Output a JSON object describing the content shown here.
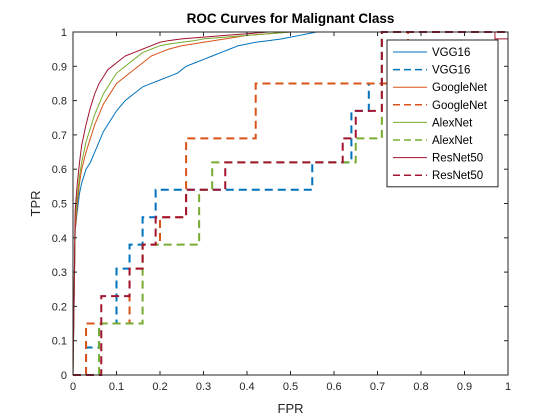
{
  "chart_data": {
    "type": "line",
    "title": "ROC Curves for Malignant Class",
    "xlabel": "FPR",
    "ylabel": "TPR",
    "xlim": [
      0,
      1
    ],
    "ylim": [
      0,
      1
    ],
    "xticks": [
      "0",
      "0.1",
      "0.2",
      "0.3",
      "0.4",
      "0.5",
      "0.6",
      "0.7",
      "0.8",
      "0.9",
      "1"
    ],
    "yticks": [
      "0",
      "0.1",
      "0.2",
      "0.3",
      "0.4",
      "0.5",
      "0.6",
      "0.7",
      "0.8",
      "0.9",
      "1"
    ],
    "grid": false,
    "legend_position": "top-right",
    "series": [
      {
        "name": "VGG16",
        "color": "#0072BD",
        "dash": "solid",
        "x": [
          0,
          0.005,
          0.01,
          0.015,
          0.02,
          0.03,
          0.04,
          0.05,
          0.06,
          0.07,
          0.08,
          0.09,
          0.1,
          0.12,
          0.14,
          0.16,
          0.18,
          0.2,
          0.22,
          0.24,
          0.26,
          0.28,
          0.3,
          0.32,
          0.34,
          0.36,
          0.38,
          0.4,
          0.42,
          0.45,
          0.48,
          0.5,
          0.52,
          0.54,
          0.56,
          1
        ],
        "y": [
          0,
          0.42,
          0.48,
          0.53,
          0.56,
          0.6,
          0.62,
          0.65,
          0.68,
          0.71,
          0.73,
          0.75,
          0.77,
          0.8,
          0.82,
          0.84,
          0.85,
          0.86,
          0.87,
          0.88,
          0.9,
          0.91,
          0.92,
          0.93,
          0.94,
          0.95,
          0.96,
          0.965,
          0.97,
          0.975,
          0.98,
          0.985,
          0.99,
          0.995,
          1,
          1
        ]
      },
      {
        "name": "VGG16",
        "color": "#0072BD",
        "dash": "dashed",
        "x": [
          0,
          0.03,
          0.03,
          0.06,
          0.06,
          0.1,
          0.1,
          0.13,
          0.13,
          0.16,
          0.16,
          0.19,
          0.19,
          0.23,
          0.23,
          0.32,
          0.32,
          0.55,
          0.55,
          0.64,
          0.64,
          0.68,
          0.68,
          0.71,
          0.71,
          1
        ],
        "y": [
          0,
          0,
          0.08,
          0.08,
          0.15,
          0.15,
          0.31,
          0.31,
          0.38,
          0.38,
          0.46,
          0.46,
          0.54,
          0.54,
          0.54,
          0.54,
          0.54,
          0.54,
          0.62,
          0.62,
          0.77,
          0.77,
          0.85,
          0.85,
          1,
          1
        ]
      },
      {
        "name": "GoogleNet",
        "color": "#D95319",
        "dash": "solid",
        "x": [
          0,
          0.005,
          0.01,
          0.015,
          0.02,
          0.03,
          0.04,
          0.05,
          0.06,
          0.07,
          0.08,
          0.09,
          0.1,
          0.12,
          0.14,
          0.16,
          0.18,
          0.2,
          0.22,
          0.25,
          0.3,
          0.35,
          0.4,
          0.45,
          0.5,
          0.55,
          1
        ],
        "y": [
          0,
          0.42,
          0.5,
          0.56,
          0.6,
          0.65,
          0.69,
          0.73,
          0.76,
          0.79,
          0.81,
          0.83,
          0.85,
          0.87,
          0.89,
          0.91,
          0.93,
          0.94,
          0.95,
          0.96,
          0.97,
          0.98,
          0.99,
          0.995,
          1,
          1,
          1
        ]
      },
      {
        "name": "GoogleNet",
        "color": "#D95319",
        "dash": "dashed",
        "x": [
          0,
          0.03,
          0.03,
          0.13,
          0.13,
          0.16,
          0.16,
          0.2,
          0.2,
          0.26,
          0.26,
          0.42,
          0.42,
          0.77,
          0.77,
          1
        ],
        "y": [
          0,
          0,
          0.15,
          0.15,
          0.31,
          0.31,
          0.38,
          0.38,
          0.46,
          0.46,
          0.69,
          0.69,
          0.85,
          0.85,
          1,
          1
        ]
      },
      {
        "name": "AlexNet",
        "color": "#77AC30",
        "dash": "solid",
        "x": [
          0,
          0.005,
          0.01,
          0.015,
          0.02,
          0.03,
          0.04,
          0.05,
          0.06,
          0.07,
          0.08,
          0.09,
          0.1,
          0.12,
          0.14,
          0.16,
          0.18,
          0.2,
          0.22,
          0.25,
          0.28,
          0.3,
          0.35,
          0.4,
          0.45,
          0.5,
          1
        ],
        "y": [
          0,
          0.45,
          0.52,
          0.58,
          0.62,
          0.68,
          0.72,
          0.76,
          0.79,
          0.82,
          0.84,
          0.86,
          0.88,
          0.9,
          0.92,
          0.94,
          0.95,
          0.96,
          0.965,
          0.97,
          0.975,
          0.98,
          0.985,
          0.99,
          0.995,
          1,
          1
        ]
      },
      {
        "name": "AlexNet",
        "color": "#77AC30",
        "dash": "dashed",
        "x": [
          0,
          0.06,
          0.06,
          0.13,
          0.13,
          0.16,
          0.16,
          0.19,
          0.19,
          0.29,
          0.29,
          0.32,
          0.32,
          0.42,
          0.42,
          0.65,
          0.65,
          0.71,
          0.71,
          1
        ],
        "y": [
          0,
          0,
          0.15,
          0.15,
          0.15,
          0.15,
          0.38,
          0.38,
          0.38,
          0.38,
          0.54,
          0.54,
          0.62,
          0.62,
          0.62,
          0.62,
          0.69,
          0.69,
          1,
          1
        ]
      },
      {
        "name": "ResNet50",
        "color": "#A2142F",
        "dash": "solid",
        "x": [
          0,
          0.005,
          0.01,
          0.015,
          0.02,
          0.03,
          0.04,
          0.05,
          0.06,
          0.07,
          0.08,
          0.09,
          0.1,
          0.12,
          0.14,
          0.16,
          0.18,
          0.2,
          0.22,
          0.25,
          0.3,
          0.35,
          0.4,
          0.45,
          0.5,
          0.97,
          0.97,
          1
        ],
        "y": [
          0,
          0.48,
          0.56,
          0.62,
          0.67,
          0.73,
          0.78,
          0.82,
          0.85,
          0.87,
          0.89,
          0.9,
          0.91,
          0.93,
          0.94,
          0.95,
          0.96,
          0.97,
          0.975,
          0.98,
          0.985,
          0.99,
          0.995,
          1,
          1,
          1,
          0.98,
          0.98
        ]
      },
      {
        "name": "ResNet50",
        "color": "#A2142F",
        "dash": "dashed",
        "x": [
          0,
          0.065,
          0.065,
          0.13,
          0.13,
          0.16,
          0.16,
          0.19,
          0.19,
          0.23,
          0.23,
          0.26,
          0.26,
          0.32,
          0.32,
          0.35,
          0.35,
          0.62,
          0.62,
          0.65,
          0.65,
          0.71,
          0.71,
          1
        ],
        "y": [
          0,
          0,
          0.23,
          0.23,
          0.31,
          0.31,
          0.38,
          0.38,
          0.46,
          0.46,
          0.46,
          0.46,
          0.54,
          0.54,
          0.54,
          0.54,
          0.62,
          0.62,
          0.69,
          0.69,
          0.77,
          0.77,
          1,
          1
        ]
      }
    ]
  }
}
